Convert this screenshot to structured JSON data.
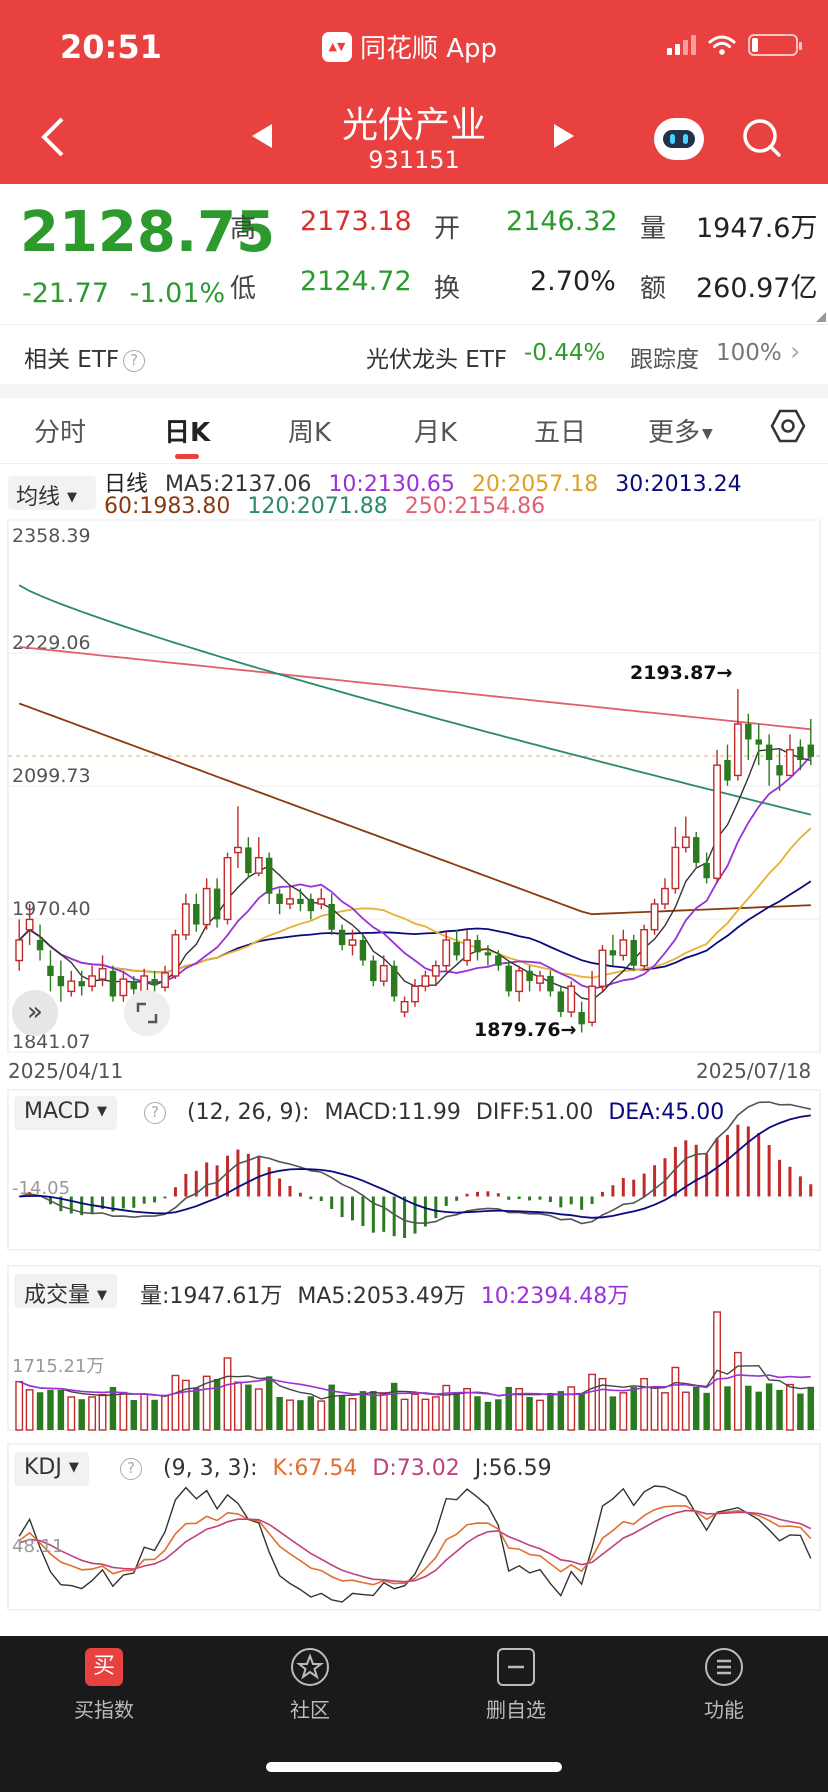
{
  "status_bar": {
    "time": "20:51",
    "app_name": "同花顺 App"
  },
  "header": {
    "title": "光伏产业",
    "code": "931151"
  },
  "quote": {
    "price": "2128.75",
    "change": "-21.77",
    "change_pct": "-1.01%",
    "high_label": "高",
    "high": "2173.18",
    "open_label": "开",
    "open": "2146.32",
    "volume_label": "量",
    "volume": "1947.6万",
    "low_label": "低",
    "low": "2124.72",
    "turnover_label": "换",
    "turnover": "2.70%",
    "amount_label": "额",
    "amount": "260.97亿"
  },
  "etf": {
    "label": "相关 ETF",
    "name": "光伏龙头 ETF",
    "change": "-0.44%",
    "tracking_label": "跟踪度",
    "tracking": "100%"
  },
  "tabs": [
    {
      "label": "分时"
    },
    {
      "label": "日K"
    },
    {
      "label": "周K"
    },
    {
      "label": "月K"
    },
    {
      "label": "五日"
    },
    {
      "label": "更多"
    }
  ],
  "active_tab": "日K",
  "ma_legend": {
    "select": "均线",
    "period": "日线",
    "ma5": "MA5:2137.06",
    "ma10": "10:2130.65",
    "ma20": "20:2057.18",
    "ma30": "30:2013.24",
    "ma60": "60:1983.80",
    "ma120": "120:2071.88",
    "ma250": "250:2154.86"
  },
  "colors": {
    "up": "#c22a2a",
    "down": "#2b7a1f",
    "ma5": "#333333",
    "ma10": "#9b30d9",
    "ma20": "#e8b030",
    "ma30": "#0a0a80",
    "ma60": "#8b3a10",
    "ma120": "#2a8a6a",
    "ma250": "#e06070"
  },
  "chart_data": [
    {
      "type": "candlestick",
      "title": "日线",
      "y_ticks": [
        "2358.39",
        "2229.06",
        "2099.73",
        "1970.40",
        "1841.07"
      ],
      "ylim": [
        1841.07,
        2358.39
      ],
      "x_labels": [
        "2025/04/11",
        "2025/07/18"
      ],
      "annotations": [
        {
          "text": "2193.87→",
          "value": 2193.87
        },
        {
          "text": "1879.76→",
          "value": 1879.76
        }
      ],
      "candles": [
        [
          1930,
          1950,
          1970,
          1920
        ],
        [
          1960,
          1970,
          1985,
          1945
        ],
        [
          1950,
          1940,
          1965,
          1930
        ],
        [
          1925,
          1915,
          1940,
          1900
        ],
        [
          1915,
          1905,
          1930,
          1890
        ],
        [
          1900,
          1910,
          1920,
          1895
        ],
        [
          1910,
          1905,
          1920,
          1896
        ],
        [
          1905,
          1915,
          1925,
          1900
        ],
        [
          1912,
          1922,
          1935,
          1905
        ],
        [
          1920,
          1895,
          1925,
          1890
        ],
        [
          1896,
          1912,
          1920,
          1890
        ],
        [
          1910,
          1902,
          1915,
          1895
        ],
        [
          1900,
          1915,
          1922,
          1895
        ],
        [
          1912,
          1906,
          1920,
          1898
        ],
        [
          1904,
          1918,
          1925,
          1900
        ],
        [
          1915,
          1955,
          1960,
          1912
        ],
        [
          1955,
          1985,
          1995,
          1950
        ],
        [
          1985,
          1965,
          1995,
          1958
        ],
        [
          1965,
          2000,
          2010,
          1960
        ],
        [
          2000,
          1970,
          2010,
          1962
        ],
        [
          1970,
          2030,
          2035,
          1965
        ],
        [
          2035,
          2040,
          2080,
          2020
        ],
        [
          2040,
          2015,
          2050,
          2010
        ],
        [
          2015,
          2030,
          2050,
          2012
        ],
        [
          2030,
          1995,
          2035,
          1985
        ],
        [
          1995,
          1985,
          2000,
          1975
        ],
        [
          1985,
          1990,
          2002,
          1980
        ],
        [
          1990,
          1985,
          2000,
          1978
        ],
        [
          1990,
          1978,
          1995,
          1970
        ],
        [
          1985,
          1990,
          2000,
          1980
        ],
        [
          1985,
          1960,
          1995,
          1955
        ],
        [
          1960,
          1945,
          1965,
          1940
        ],
        [
          1945,
          1950,
          1960,
          1935
        ],
        [
          1950,
          1930,
          1955,
          1925
        ],
        [
          1930,
          1910,
          1935,
          1905
        ],
        [
          1910,
          1925,
          1935,
          1905
        ],
        [
          1925,
          1895,
          1930,
          1890
        ],
        [
          1880,
          1890,
          1895,
          1875
        ],
        [
          1890,
          1905,
          1912,
          1885
        ],
        [
          1905,
          1915,
          1920,
          1900
        ],
        [
          1915,
          1925,
          1930,
          1905
        ],
        [
          1925,
          1950,
          1958,
          1920
        ],
        [
          1948,
          1935,
          1960,
          1930
        ],
        [
          1930,
          1950,
          1960,
          1925
        ],
        [
          1950,
          1938,
          1955,
          1930
        ],
        [
          1938,
          1935,
          1945,
          1925
        ],
        [
          1935,
          1925,
          1940,
          1920
        ],
        [
          1925,
          1900,
          1930,
          1895
        ],
        [
          1900,
          1920,
          1925,
          1890
        ],
        [
          1920,
          1910,
          1925,
          1900
        ],
        [
          1908,
          1915,
          1920,
          1900
        ],
        [
          1915,
          1900,
          1920,
          1895
        ],
        [
          1900,
          1880,
          1905,
          1875
        ],
        [
          1880,
          1905,
          1910,
          1875
        ],
        [
          1880,
          1868,
          1890,
          1860
        ],
        [
          1870,
          1905,
          1920,
          1866
        ],
        [
          1905,
          1940,
          1945,
          1900
        ],
        [
          1940,
          1935,
          1955,
          1925
        ],
        [
          1935,
          1950,
          1960,
          1930
        ],
        [
          1950,
          1925,
          1955,
          1920
        ],
        [
          1925,
          1960,
          1965,
          1920
        ],
        [
          1960,
          1985,
          1990,
          1955
        ],
        [
          1985,
          2000,
          2010,
          1980
        ],
        [
          2000,
          2040,
          2060,
          1995
        ],
        [
          2040,
          2050,
          2070,
          2035
        ],
        [
          2050,
          2025,
          2055,
          2020
        ],
        [
          2025,
          2010,
          2035,
          2005
        ],
        [
          2010,
          2120,
          2135,
          2005
        ],
        [
          2125,
          2105,
          2140,
          2100
        ],
        [
          2110,
          2160,
          2194,
          2105
        ],
        [
          2160,
          2145,
          2170,
          2125
        ],
        [
          2145,
          2140,
          2160,
          2120
        ],
        [
          2140,
          2125,
          2150,
          2100
        ],
        [
          2120,
          2110,
          2135,
          2095
        ],
        [
          2110,
          2135,
          2150,
          2110
        ],
        [
          2138,
          2125,
          2145,
          2115
        ],
        [
          2140,
          2128,
          2165,
          2120
        ]
      ]
    },
    {
      "type": "bar",
      "title": "MACD",
      "params": "(12, 26, 9):",
      "macd": "MACD:11.99",
      "diff": "DIFF:51.00",
      "dea": "DEA:45.00",
      "y_tick": "-14.05"
    },
    {
      "type": "bar",
      "title": "成交量",
      "volume": "量:1947.61万",
      "ma5": "MA5:2053.49万",
      "ma10": "10:2394.48万",
      "y_tick": "1715.21万"
    },
    {
      "type": "line",
      "title": "KDJ",
      "params": "(9, 3, 3):",
      "k": "K:67.54",
      "d": "D:73.02",
      "j": "J:56.59",
      "y_tick": "48.11"
    }
  ],
  "bottom_nav": [
    {
      "label": "买指数",
      "icon": "buy-icon",
      "glyph": "买"
    },
    {
      "label": "社区",
      "icon": "star-icon"
    },
    {
      "label": "删自选",
      "icon": "remove-icon"
    },
    {
      "label": "功能",
      "icon": "menu-icon"
    }
  ]
}
